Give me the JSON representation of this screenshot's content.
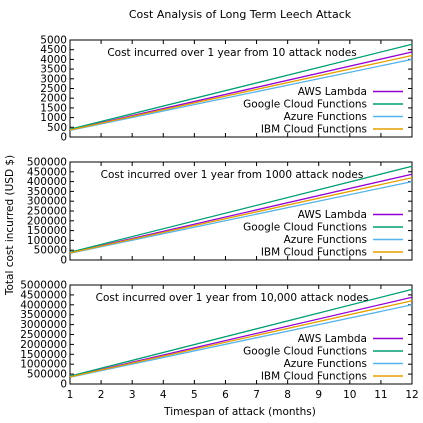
{
  "title": "Cost Analysis of Long Term Leech Attack",
  "xlabel": "Timespan of attack (months)",
  "ylabel": "Total cost incurred (USD $)",
  "colors": {
    "AWS Lambda": "#9400d3",
    "Google Cloud Functions": "#009e73",
    "Azure Functions": "#56b4e9",
    "IBM Cloud Functions": "#e69f00"
  },
  "chart_data": [
    {
      "type": "line",
      "title": "Cost incurred over 1 year from 10 attack nodes",
      "xlim": [
        1,
        12
      ],
      "ylim": [
        0,
        5000
      ],
      "x_ticks": [
        1,
        2,
        3,
        4,
        5,
        6,
        7,
        8,
        9,
        10,
        11,
        12
      ],
      "y_ticks": [
        0,
        500,
        1000,
        1500,
        2000,
        2500,
        3000,
        3500,
        4000,
        4500,
        5000
      ],
      "legend_position": "bottom-right",
      "x": [
        1,
        12
      ],
      "series": [
        {
          "name": "AWS Lambda",
          "values": [
            370,
            4380
          ]
        },
        {
          "name": "Google Cloud Functions",
          "values": [
            400,
            4780
          ]
        },
        {
          "name": "Azure Functions",
          "values": [
            340,
            4000
          ]
        },
        {
          "name": "IBM Cloud Functions",
          "values": [
            360,
            4200
          ]
        }
      ]
    },
    {
      "type": "line",
      "title": "Cost incurred over 1 year from 1000 attack nodes",
      "xlim": [
        1,
        12
      ],
      "ylim": [
        0,
        500000
      ],
      "x_ticks": [
        1,
        2,
        3,
        4,
        5,
        6,
        7,
        8,
        9,
        10,
        11,
        12
      ],
      "y_ticks": [
        0,
        50000,
        100000,
        150000,
        200000,
        250000,
        300000,
        350000,
        400000,
        450000,
        500000
      ],
      "legend_position": "bottom-right",
      "x": [
        1,
        12
      ],
      "series": [
        {
          "name": "AWS Lambda",
          "values": [
            37000,
            438000
          ]
        },
        {
          "name": "Google Cloud Functions",
          "values": [
            40000,
            478000
          ]
        },
        {
          "name": "Azure Functions",
          "values": [
            34000,
            400000
          ]
        },
        {
          "name": "IBM Cloud Functions",
          "values": [
            36000,
            420000
          ]
        }
      ]
    },
    {
      "type": "line",
      "title": "Cost incurred over 1 year from 10,000 attack nodes",
      "xlim": [
        1,
        12
      ],
      "ylim": [
        0,
        5000000
      ],
      "x_ticks": [
        1,
        2,
        3,
        4,
        5,
        6,
        7,
        8,
        9,
        10,
        11,
        12
      ],
      "y_ticks": [
        0,
        500000,
        1000000,
        1500000,
        2000000,
        2500000,
        3000000,
        3500000,
        4000000,
        4500000,
        5000000
      ],
      "legend_position": "bottom-right",
      "x": [
        1,
        12
      ],
      "series": [
        {
          "name": "AWS Lambda",
          "values": [
            370000,
            4380000
          ]
        },
        {
          "name": "Google Cloud Functions",
          "values": [
            400000,
            4780000
          ]
        },
        {
          "name": "Azure Functions",
          "values": [
            340000,
            4000000
          ]
        },
        {
          "name": "IBM Cloud Functions",
          "values": [
            360000,
            4200000
          ]
        }
      ]
    }
  ]
}
